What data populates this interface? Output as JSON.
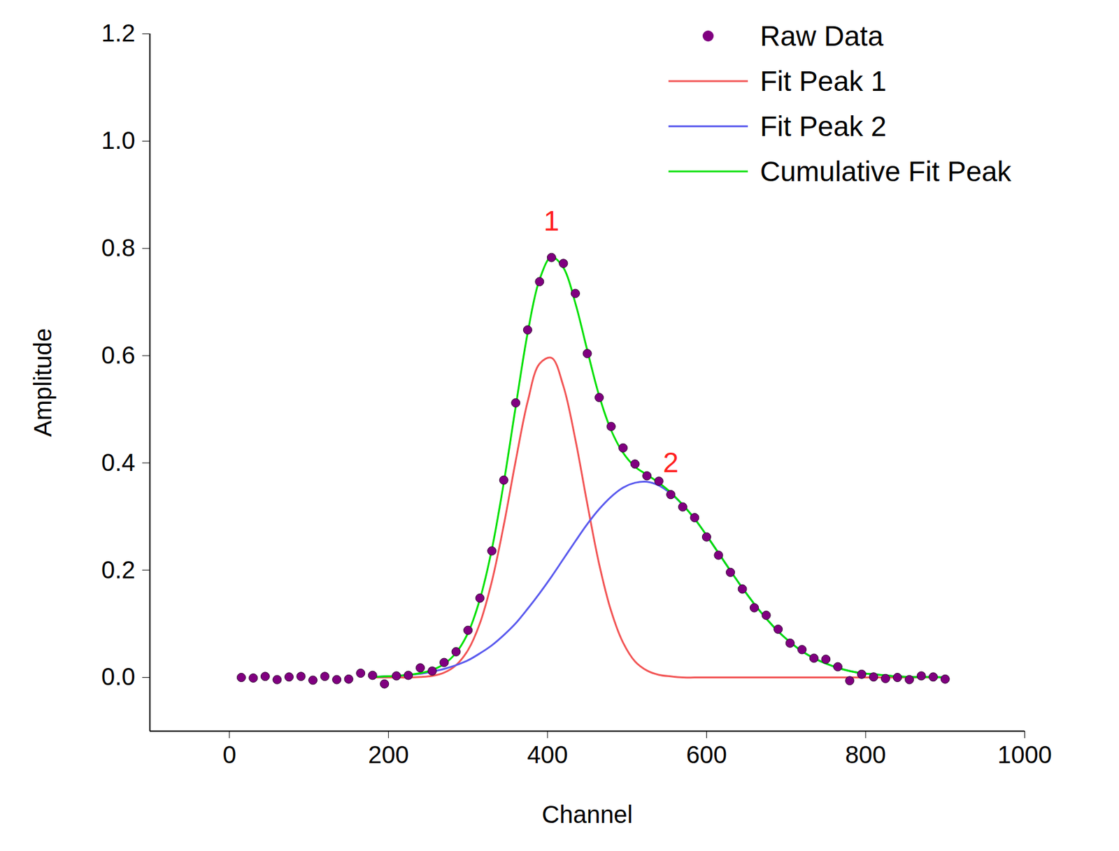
{
  "chart_data": {
    "type": "line",
    "x_label": "Channel",
    "y_label": "Amplitude",
    "xlim": [
      -100,
      1000
    ],
    "xticks": [
      0,
      200,
      400,
      600,
      800,
      1000
    ],
    "ylim": [
      -0.1,
      1.2
    ],
    "yticks": [
      {
        "value": 0,
        "label": "0.0"
      },
      0.2,
      0.4,
      0.6,
      0.8,
      {
        "value": 1,
        "label": "1.0"
      },
      1.2
    ],
    "grid": false,
    "legend": "top-right",
    "x": [
      15,
      30,
      45,
      60,
      75,
      90,
      105,
      120,
      135,
      150,
      165,
      180,
      195,
      210,
      225,
      240,
      255,
      270,
      285,
      300,
      315,
      330,
      345,
      360,
      375,
      390,
      405,
      420,
      435,
      450,
      465,
      480,
      495,
      510,
      525,
      540,
      555,
      570,
      585,
      600,
      615,
      630,
      645,
      660,
      675,
      690,
      705,
      720,
      735,
      750,
      765,
      780,
      795,
      810,
      825,
      840,
      855,
      870,
      885,
      900
    ],
    "series": [
      {
        "name": "Raw Data",
        "type": "scatter",
        "marker": "circle",
        "color": "#800080",
        "values": [
          0.0,
          -0.001,
          0.002,
          -0.004,
          0.001,
          0.002,
          -0.005,
          0.002,
          -0.004,
          -0.003,
          0.008,
          0.004,
          -0.012,
          0.003,
          0.004,
          0.018,
          0.012,
          0.028,
          0.048,
          0.088,
          0.148,
          0.236,
          0.368,
          0.512,
          0.648,
          0.738,
          0.783,
          0.772,
          0.716,
          0.604,
          0.522,
          0.468,
          0.428,
          0.398,
          0.376,
          0.366,
          0.341,
          0.318,
          0.298,
          0.262,
          0.228,
          0.196,
          0.165,
          0.13,
          0.116,
          0.09,
          0.064,
          0.052,
          0.036,
          0.034,
          0.02,
          -0.006,
          0.006,
          0.001,
          -0.002,
          0.0,
          -0.004,
          0.003,
          0.001,
          -0.003
        ]
      },
      {
        "name": "Fit Peak 1",
        "type": "line",
        "line_style": "solid",
        "color": "#f25555",
        "values": [
          null,
          null,
          null,
          null,
          null,
          null,
          null,
          null,
          null,
          null,
          null,
          0.0,
          0.0,
          0.0,
          0.0,
          0.001,
          0.003,
          0.009,
          0.023,
          0.051,
          0.101,
          0.179,
          0.284,
          0.404,
          0.514,
          0.585,
          0.596,
          0.543,
          0.444,
          0.324,
          0.211,
          0.124,
          0.065,
          0.03,
          0.013,
          0.005,
          0.002,
          0.0,
          0.0,
          0.0,
          0.0,
          0.0,
          0.0,
          0.0,
          0.0,
          0.0,
          0.0,
          0.0,
          0.0,
          0.0,
          0.0,
          0.0,
          0.0,
          0.0,
          0.0,
          0.0,
          0.0,
          0.0,
          0.0,
          0.0
        ]
      },
      {
        "name": "Fit Peak 2",
        "type": "line",
        "line_style": "solid",
        "color": "#5a5aee",
        "values": [
          null,
          null,
          null,
          null,
          null,
          null,
          null,
          null,
          null,
          null,
          null,
          0.001,
          0.002,
          0.003,
          0.005,
          0.007,
          0.011,
          0.016,
          0.023,
          0.032,
          0.045,
          0.06,
          0.079,
          0.101,
          0.128,
          0.157,
          0.188,
          0.221,
          0.254,
          0.286,
          0.314,
          0.337,
          0.354,
          0.363,
          0.365,
          0.358,
          0.343,
          0.322,
          0.296,
          0.265,
          0.232,
          0.199,
          0.167,
          0.137,
          0.11,
          0.086,
          0.066,
          0.049,
          0.036,
          0.026,
          0.018,
          0.012,
          0.008,
          0.006,
          0.004,
          0.002,
          0.001,
          0.001,
          0.001,
          0.0
        ]
      },
      {
        "name": "Cumulative Fit Peak",
        "type": "line",
        "line_style": "solid",
        "color": "#00e000",
        "values": [
          null,
          null,
          null,
          null,
          null,
          null,
          null,
          null,
          null,
          null,
          null,
          0.001,
          0.002,
          0.003,
          0.005,
          0.008,
          0.014,
          0.025,
          0.046,
          0.083,
          0.146,
          0.239,
          0.363,
          0.505,
          0.642,
          0.742,
          0.784,
          0.764,
          0.698,
          0.61,
          0.525,
          0.461,
          0.419,
          0.393,
          0.378,
          0.363,
          0.345,
          0.322,
          0.296,
          0.265,
          0.232,
          0.199,
          0.167,
          0.137,
          0.11,
          0.086,
          0.066,
          0.049,
          0.036,
          0.026,
          0.018,
          0.012,
          0.008,
          0.006,
          0.004,
          0.002,
          0.001,
          0.001,
          0.001,
          0.0
        ]
      }
    ],
    "annotations": [
      {
        "text": "1",
        "x": 405,
        "y": 0.85,
        "color": "#ff2020"
      },
      {
        "text": "2",
        "x": 555,
        "y": 0.4,
        "color": "#ff2020"
      }
    ]
  }
}
